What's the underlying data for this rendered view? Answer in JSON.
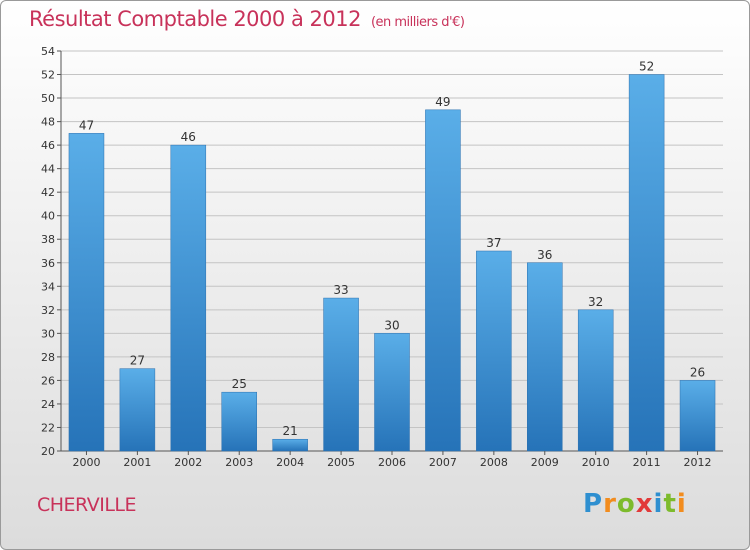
{
  "title": "Résultat Comptable 2000 à 2012",
  "subtitle": "(en milliers d'€)",
  "commune": "CHERVILLE",
  "brand": {
    "letters": [
      "P",
      "r",
      "o",
      "x",
      "i",
      "t",
      "i"
    ],
    "colors": [
      "#2e8fd0",
      "#f28c1e",
      "#7dbb2c",
      "#e23a3a",
      "#2e8fd0",
      "#7dbb2c",
      "#f28c1e"
    ]
  },
  "chart_data": {
    "type": "bar",
    "categories": [
      "2000",
      "2001",
      "2002",
      "2003",
      "2004",
      "2005",
      "2006",
      "2007",
      "2008",
      "2009",
      "2010",
      "2011",
      "2012"
    ],
    "values": [
      47,
      27,
      46,
      25,
      21,
      33,
      30,
      49,
      37,
      36,
      32,
      52,
      26
    ],
    "ylim": [
      20,
      54
    ],
    "yticks": [
      20,
      22,
      24,
      26,
      28,
      30,
      32,
      34,
      36,
      38,
      40,
      42,
      44,
      46,
      48,
      50,
      52,
      54
    ],
    "grid": true,
    "bar_color": "#3b8fd6"
  }
}
